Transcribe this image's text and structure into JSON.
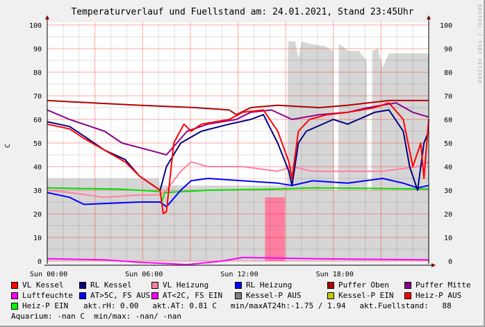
{
  "chart_data": {
    "type": "line",
    "title": "Temperaturverlauf und Fuellstand am: 24.01.2021, Stand 23:45Uhr",
    "ylabel": "C",
    "ylim": [
      0,
      100
    ],
    "xlim_hours": [
      0,
      24
    ],
    "yticks": [
      "0",
      "10",
      "20",
      "30",
      "40",
      "50",
      "60",
      "70",
      "80",
      "90",
      "100"
    ],
    "xticks": [
      {
        "h": 0,
        "label": "Sun 00:00"
      },
      {
        "h": 6,
        "label": "Sun 06:00"
      },
      {
        "h": 12,
        "label": "Sun 12:00"
      },
      {
        "h": 18,
        "label": "Sun 18:00"
      }
    ],
    "areas": [
      {
        "name": "Fuellstand",
        "color": "#d6d6d6",
        "points": [
          [
            0,
            35
          ],
          [
            7,
            35
          ],
          [
            7.1,
            32
          ],
          [
            15.1,
            32
          ],
          [
            15.15,
            93
          ],
          [
            15.6,
            93
          ],
          [
            15.8,
            86
          ],
          [
            16.0,
            93
          ],
          [
            16.6,
            92
          ],
          [
            17.5,
            91
          ],
          [
            18.0,
            89
          ],
          [
            18.05,
            30
          ],
          [
            18.3,
            30
          ],
          [
            18.35,
            92
          ],
          [
            19.0,
            89
          ],
          [
            19.6,
            89
          ],
          [
            20.1,
            85
          ],
          [
            20.15,
            30
          ],
          [
            20.4,
            30
          ],
          [
            20.45,
            89
          ],
          [
            20.8,
            90
          ],
          [
            21.1,
            82
          ],
          [
            21.5,
            88
          ],
          [
            23.7,
            88
          ],
          [
            24,
            88
          ]
        ]
      },
      {
        "name": "Heiz-P AUS fill",
        "color": "#ff7fa0",
        "points": [
          [
            13.7,
            27
          ],
          [
            14.95,
            27
          ]
        ]
      }
    ],
    "series": [
      {
        "name": "Puffer Oben",
        "color": "#b00000",
        "points": [
          [
            0,
            68
          ],
          [
            1.4,
            67.5
          ],
          [
            5.8,
            66
          ],
          [
            9.3,
            65
          ],
          [
            11.45,
            64
          ],
          [
            11.9,
            62
          ],
          [
            12.8,
            65
          ],
          [
            14.5,
            66
          ],
          [
            17.1,
            65
          ],
          [
            18.9,
            66
          ],
          [
            21.5,
            68
          ],
          [
            24,
            68
          ]
        ]
      },
      {
        "name": "Puffer Mitte",
        "color": "#8b008b",
        "points": [
          [
            0,
            64
          ],
          [
            1.4,
            60
          ],
          [
            3.6,
            55
          ],
          [
            4.7,
            50
          ],
          [
            6.4,
            47
          ],
          [
            7.5,
            45
          ],
          [
            8.8,
            55
          ],
          [
            10.1,
            58
          ],
          [
            11.9,
            60
          ],
          [
            12.8,
            63
          ],
          [
            14.1,
            64
          ],
          [
            15.4,
            60
          ],
          [
            17.1,
            62
          ],
          [
            18.9,
            63
          ],
          [
            20.2,
            65
          ],
          [
            21.95,
            67
          ],
          [
            23.0,
            63
          ],
          [
            24,
            61
          ]
        ]
      },
      {
        "name": "Heiz-P EIN",
        "color": "#00e000",
        "points": [
          [
            0,
            31
          ],
          [
            1.4,
            30.8
          ],
          [
            4.4,
            30.5
          ],
          [
            7.1,
            29.5
          ],
          [
            7.2,
            25
          ],
          [
            7.4,
            29
          ],
          [
            10.1,
            30
          ],
          [
            14.5,
            30.5
          ],
          [
            16.7,
            31
          ],
          [
            20.2,
            30.8
          ],
          [
            24,
            30.5
          ]
        ]
      },
      {
        "name": "RL Heizung",
        "color": "#0000ff",
        "points": [
          [
            0,
            29
          ],
          [
            1.4,
            27
          ],
          [
            2.3,
            24
          ],
          [
            5.8,
            25
          ],
          [
            7.1,
            25
          ],
          [
            7.5,
            23
          ],
          [
            8.4,
            30
          ],
          [
            9.05,
            34
          ],
          [
            10.1,
            35
          ],
          [
            12.3,
            34
          ],
          [
            14.5,
            33
          ],
          [
            15.4,
            32
          ],
          [
            16.7,
            34
          ],
          [
            18.9,
            33
          ],
          [
            21.1,
            35
          ],
          [
            22.4,
            33
          ],
          [
            23.3,
            31
          ],
          [
            24,
            32
          ]
        ]
      },
      {
        "name": "VL Heizung",
        "color": "#ff80a0",
        "points": [
          [
            0,
            30
          ],
          [
            1.4,
            29
          ],
          [
            3.6,
            27
          ],
          [
            5.8,
            28
          ],
          [
            7.1,
            28
          ],
          [
            7.5,
            30
          ],
          [
            8.4,
            38
          ],
          [
            9.05,
            42
          ],
          [
            10.1,
            40
          ],
          [
            12.3,
            40
          ],
          [
            14.5,
            38
          ],
          [
            15.4,
            40
          ],
          [
            16.7,
            38
          ],
          [
            18.9,
            38
          ],
          [
            21.1,
            38
          ],
          [
            23.3,
            40
          ],
          [
            24,
            42
          ]
        ]
      },
      {
        "name": "RL Kessel",
        "color": "#000080",
        "points": [
          [
            0,
            59
          ],
          [
            1.4,
            57
          ],
          [
            2.3,
            53
          ],
          [
            3.6,
            47
          ],
          [
            4.9,
            43
          ],
          [
            5.8,
            36
          ],
          [
            7.1,
            30
          ],
          [
            7.5,
            40
          ],
          [
            8.4,
            50
          ],
          [
            9.7,
            55
          ],
          [
            11.45,
            58
          ],
          [
            12.8,
            60
          ],
          [
            13.6,
            62
          ],
          [
            14.5,
            50
          ],
          [
            15.2,
            38
          ],
          [
            15.4,
            32
          ],
          [
            15.8,
            50
          ],
          [
            16.3,
            55
          ],
          [
            18.0,
            60
          ],
          [
            18.9,
            58
          ],
          [
            20.6,
            63
          ],
          [
            21.5,
            64
          ],
          [
            22.4,
            55
          ],
          [
            22.8,
            40
          ],
          [
            23.3,
            30
          ],
          [
            23.7,
            50
          ],
          [
            24,
            55
          ]
        ]
      },
      {
        "name": "VL Kessel",
        "color": "#ff0000",
        "points": [
          [
            0,
            58
          ],
          [
            1.4,
            56
          ],
          [
            2.3,
            52
          ],
          [
            3.6,
            47
          ],
          [
            4.9,
            42
          ],
          [
            5.8,
            36
          ],
          [
            7.1,
            30
          ],
          [
            7.3,
            20
          ],
          [
            7.5,
            21
          ],
          [
            7.96,
            50
          ],
          [
            8.6,
            58
          ],
          [
            9.05,
            55
          ],
          [
            9.7,
            58
          ],
          [
            11.45,
            60
          ],
          [
            12.3,
            63
          ],
          [
            13.6,
            64
          ],
          [
            14.5,
            55
          ],
          [
            15.2,
            42
          ],
          [
            15.4,
            35
          ],
          [
            15.6,
            45
          ],
          [
            15.8,
            55
          ],
          [
            16.5,
            60
          ],
          [
            17.6,
            62
          ],
          [
            18.9,
            63
          ],
          [
            20.6,
            65
          ],
          [
            21.5,
            67
          ],
          [
            22.4,
            60
          ],
          [
            23.0,
            40
          ],
          [
            23.5,
            50
          ],
          [
            23.7,
            35
          ],
          [
            24,
            60
          ]
        ]
      },
      {
        "name": "Luftfeuchte",
        "color": "#ff00ff",
        "points": [
          [
            0,
            1
          ],
          [
            3.6,
            0.5
          ],
          [
            5.8,
            -0.5
          ],
          [
            8.8,
            -1.5
          ],
          [
            11.0,
            0
          ],
          [
            12.3,
            1.5
          ],
          [
            16.7,
            1
          ],
          [
            24,
            0.5
          ]
        ]
      }
    ]
  },
  "watermark": "RRDTOOL / TOBI OETIKER",
  "legend": {
    "rows": [
      [
        {
          "label": "VL Kessel",
          "color": "#ff0000"
        },
        {
          "label": "RL Kessel",
          "color": "#000080"
        },
        {
          "label": "VL Heizung",
          "color": "#ff80a0"
        },
        {
          "label": "RL Heizung",
          "color": "#0000ff"
        },
        {
          "label": "Puffer Oben",
          "color": "#b00000"
        },
        {
          "label": "Puffer Mitte",
          "color": "#8b008b"
        }
      ],
      [
        {
          "label": "Luftfeuchte",
          "color": "#ff00ff"
        },
        {
          "label": "AT>5C, FS AUS",
          "color": "#0000ff"
        },
        {
          "label": "AT<2C, FS EIN",
          "color": "#ff00ff"
        },
        {
          "label": "Kessel-P AUS",
          "color": "#808080"
        },
        {
          "label": "Kessel-P EIN",
          "color": "#c8c800"
        },
        {
          "label": "Heiz-P AUS",
          "color": "#ff0000"
        }
      ]
    ],
    "row3_item": {
      "label": "Heiz-P EIN",
      "color": "#00ff00"
    },
    "row3_text": "akt.rH: 0.00   akt.AT: 0.81 C   min/maxAT24h:-1.75 / 1.94   akt.Fuellstand:   88",
    "row4_text": "Aquarium: -nan C  min/max: -nan/ -nan"
  }
}
